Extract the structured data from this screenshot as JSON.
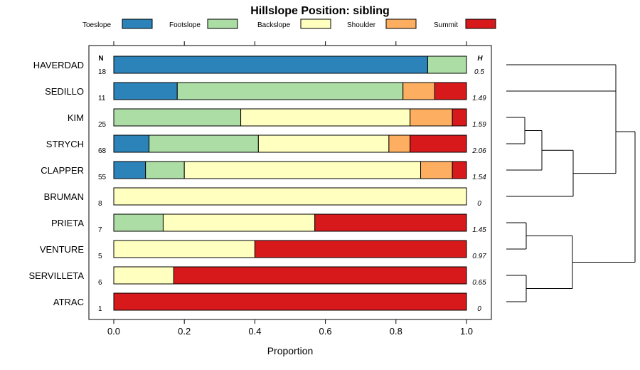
{
  "chart_data": {
    "type": "bar",
    "orientation": "horizontal",
    "stacked": true,
    "title": "Hillslope Position: sibling",
    "xlabel": "Proportion",
    "ylabel": "",
    "xlim": [
      0,
      1
    ],
    "x_ticks": [
      "0.0",
      "0.2",
      "0.4",
      "0.6",
      "0.8",
      "1.0"
    ],
    "n_header": "N",
    "h_header": "H",
    "legend_position": "top",
    "legend": [
      {
        "name": "Toeslope",
        "color": "#2b83ba"
      },
      {
        "name": "Footslope",
        "color": "#abdda4"
      },
      {
        "name": "Backslope",
        "color": "#ffffbf"
      },
      {
        "name": "Shoulder",
        "color": "#fdae61"
      },
      {
        "name": "Summit",
        "color": "#d7191c"
      }
    ],
    "categories": [
      "HAVERDAD",
      "SEDILLO",
      "KIM",
      "STRYCH",
      "CLAPPER",
      "BRUMAN",
      "PRIETA",
      "VENTURE",
      "SERVILLETA",
      "ATRAC"
    ],
    "n": [
      "18",
      "11",
      "25",
      "68",
      "55",
      "8",
      "7",
      "5",
      "6",
      "1"
    ],
    "h": [
      "0.5",
      "1.49",
      "1.59",
      "2.06",
      "1.54",
      "0",
      "1.45",
      "0.97",
      "0.65",
      "0"
    ],
    "series": [
      {
        "name": "Toeslope",
        "values": [
          0.89,
          0.18,
          0,
          0.1,
          0.09,
          0,
          0,
          0,
          0,
          0
        ]
      },
      {
        "name": "Footslope",
        "values": [
          0.11,
          0.64,
          0.36,
          0.31,
          0.11,
          0,
          0.14,
          0,
          0,
          0
        ]
      },
      {
        "name": "Backslope",
        "values": [
          0,
          0,
          0.48,
          0.37,
          0.67,
          1.0,
          0.43,
          0.4,
          0.17,
          0
        ]
      },
      {
        "name": "Shoulder",
        "values": [
          0,
          0.09,
          0.12,
          0.06,
          0.09,
          0,
          0,
          0,
          0,
          0
        ]
      },
      {
        "name": "Summit",
        "values": [
          0,
          0.09,
          0.04,
          0.16,
          0.04,
          0,
          0.43,
          0.6,
          0.83,
          1.0
        ]
      }
    ],
    "dendrogram": {
      "leaves": [
        "HAVERDAD",
        "SEDILLO",
        "KIM",
        "STRYCH",
        "CLAPPER",
        "BRUMAN",
        "PRIETA",
        "VENTURE",
        "SERVILLETA",
        "ATRAC"
      ],
      "merges": [
        {
          "left": "KIM",
          "right": "STRYCH",
          "height": 0.13
        },
        {
          "left": "KIM+STRYCH",
          "right": "CLAPPER",
          "height": 0.25
        },
        {
          "left": "KIM+STRYCH+CLAPPER",
          "right": "BRUMAN",
          "height": 0.47
        },
        {
          "left": "HAVERDAD",
          "right": "SEDILLO",
          "height": 0.82
        },
        {
          "left": "HAVERDAD+SEDILLO",
          "right": "KIM+STRYCH+CLAPPER+BRUMAN",
          "height": 0.88
        },
        {
          "left": "PRIETA",
          "right": "VENTURE",
          "height": 0.14
        },
        {
          "left": "SERVILLETA",
          "right": "ATRAC",
          "height": 0.15
        },
        {
          "left": "PRIETA+VENTURE",
          "right": "SERVILLETA+ATRAC",
          "height": 0.47
        },
        {
          "left": "upper",
          "right": "lower",
          "height": 1.0
        }
      ]
    }
  }
}
